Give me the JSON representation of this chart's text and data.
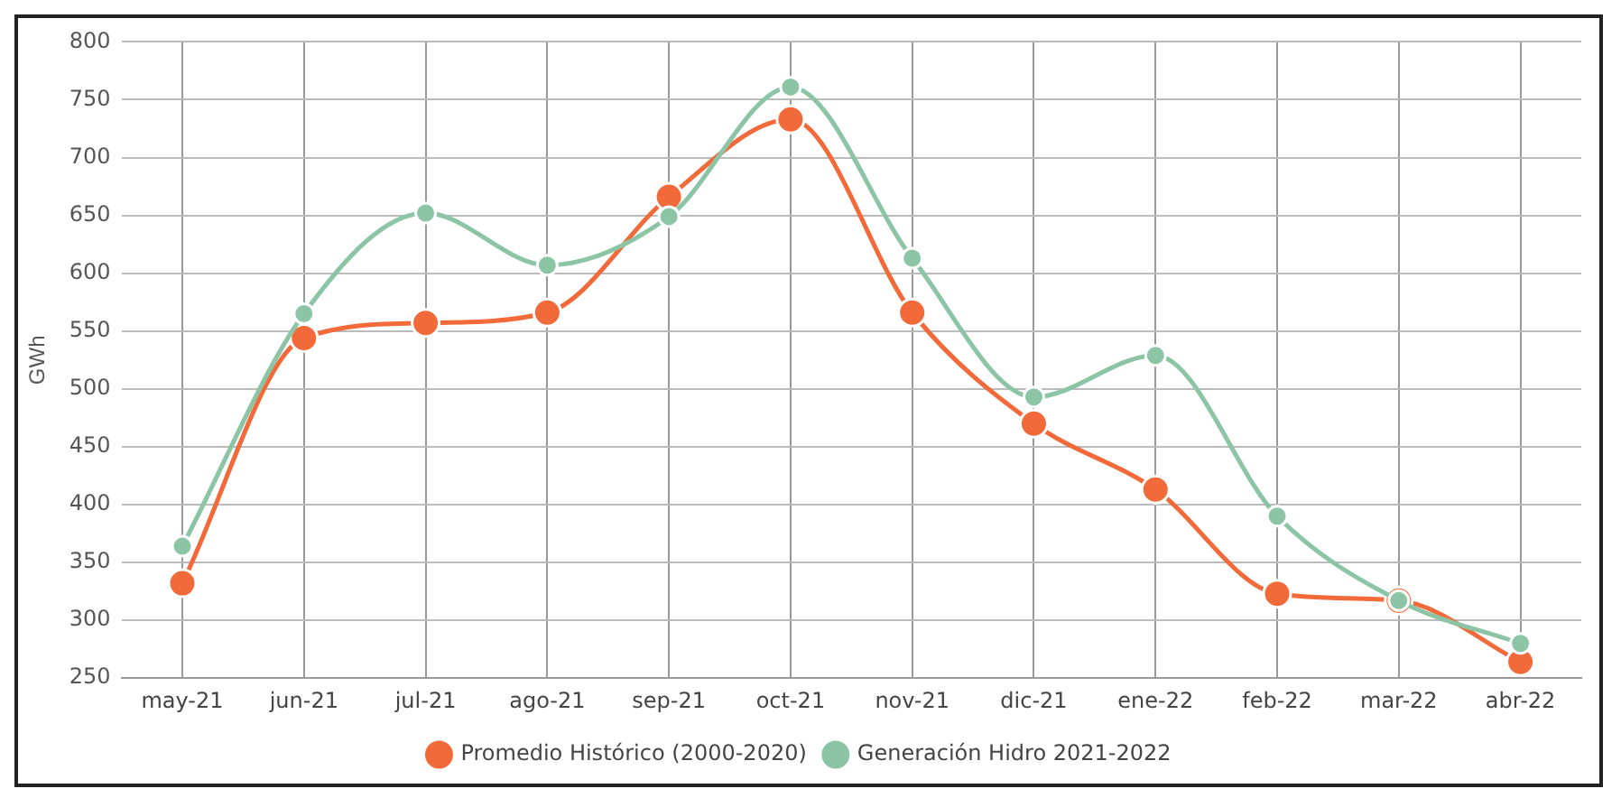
{
  "chart_data": {
    "type": "line",
    "ylabel": "GWh",
    "categories": [
      "may-21",
      "jun-21",
      "jul-21",
      "ago-21",
      "sep-21",
      "oct-21",
      "nov-21",
      "dic-21",
      "ene-22",
      "feb-22",
      "mar-22",
      "abr-22"
    ],
    "series": [
      {
        "name": "Promedio Histórico (2000-2020)",
        "color": "#f26a3a",
        "values": [
          332,
          544,
          557,
          566,
          666,
          733,
          566,
          470,
          413,
          323,
          317,
          264
        ]
      },
      {
        "name": "Generación Hidro 2021-2022",
        "color": "#8cc5a6",
        "values": [
          364,
          565,
          652,
          607,
          649,
          761,
          613,
          493,
          529,
          390,
          317,
          280
        ]
      }
    ],
    "ylim": [
      250,
      800
    ],
    "yticks": [
      250,
      300,
      350,
      400,
      450,
      500,
      550,
      600,
      650,
      700,
      750,
      800
    ],
    "grid": true,
    "legend": "bottom",
    "marker": "circle",
    "line_style": "solid"
  }
}
